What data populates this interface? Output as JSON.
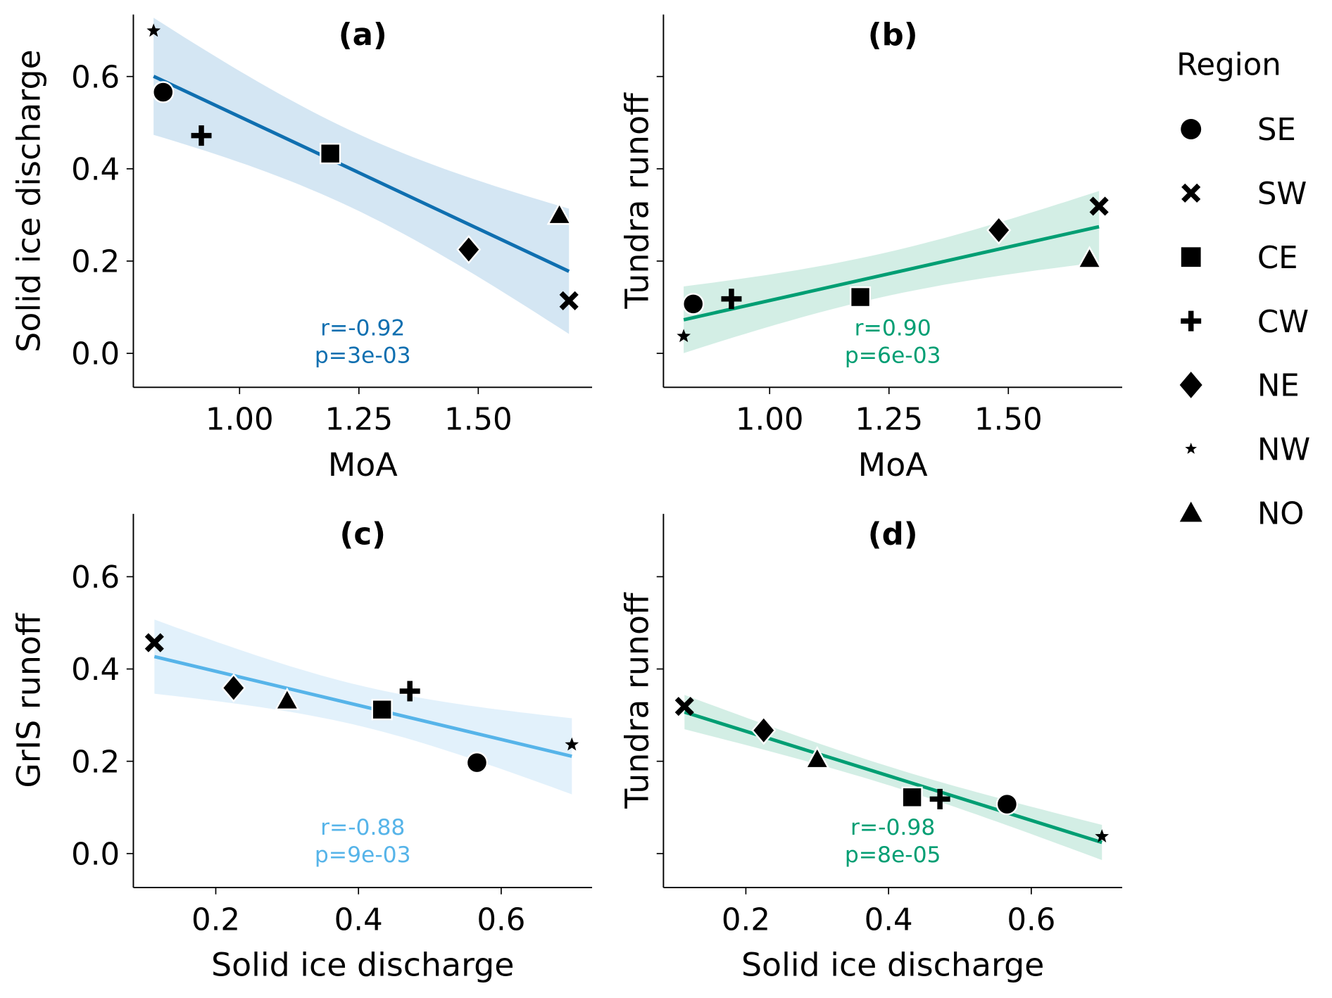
{
  "chart_data": {
    "type": "scatter",
    "regions": [
      "SE",
      "SW",
      "CE",
      "CW",
      "NE",
      "NW",
      "NO"
    ],
    "markers": {
      "SE": "circle",
      "SW": "x",
      "CE": "square",
      "CW": "plus",
      "NE": "diamond",
      "NW": "star",
      "NO": "triangle"
    },
    "points": {
      "SE": {
        "MoA": 0.84,
        "solid": 0.566,
        "tundra": 0.107,
        "gris": 0.197
      },
      "SW": {
        "MoA": 1.69,
        "solid": 0.114,
        "tundra": 0.319,
        "gris": 0.457
      },
      "CE": {
        "MoA": 1.19,
        "solid": 0.433,
        "tundra": 0.122,
        "gris": 0.312
      },
      "CW": {
        "MoA": 0.92,
        "solid": 0.472,
        "tundra": 0.118,
        "gris": 0.352
      },
      "NE": {
        "MoA": 1.48,
        "solid": 0.225,
        "tundra": 0.267,
        "gris": 0.359
      },
      "NW": {
        "MoA": 0.82,
        "solid": 0.699,
        "tundra": 0.037,
        "gris": 0.236
      },
      "NO": {
        "MoA": 1.67,
        "solid": 0.3,
        "tundra": 0.205,
        "gris": 0.332
      }
    },
    "panels": [
      {
        "title": "(a)",
        "x_var": "MoA",
        "y_var": "solid",
        "xlabel": "MoA",
        "ylabel": "Solid ice discharge",
        "xticks": [
          "1.00",
          "1.25",
          "1.50"
        ],
        "yticks": [
          "0.0",
          "0.2",
          "0.4",
          "0.6"
        ],
        "show_yticklabels": true,
        "r": "r=-0.92",
        "p": "p=3e-03",
        "color": "#0f6fb0",
        "band_color": "#c6ddef"
      },
      {
        "title": "(b)",
        "x_var": "MoA",
        "y_var": "tundra",
        "xlabel": "MoA",
        "ylabel": "Tundra runoff",
        "xticks": [
          "1.00",
          "1.25",
          "1.50"
        ],
        "yticks": [
          "0.0",
          "0.2",
          "0.4",
          "0.6"
        ],
        "show_yticklabels": false,
        "r": "r=0.90",
        "p": "p=6e-03",
        "color": "#009e73",
        "band_color": "#c4e8dc"
      },
      {
        "title": "(c)",
        "x_var": "solid",
        "y_var": "gris",
        "xlabel": "Solid ice discharge",
        "ylabel": "GrIS runoff",
        "xticks": [
          "0.2",
          "0.4",
          "0.6"
        ],
        "yticks": [
          "0.0",
          "0.2",
          "0.4",
          "0.6"
        ],
        "show_yticklabels": true,
        "r": "r=-0.88",
        "p": "p=9e-03",
        "color": "#56b4e9",
        "band_color": "#d8ecf9"
      },
      {
        "title": "(d)",
        "x_var": "solid",
        "y_var": "tundra",
        "xlabel": "Solid ice discharge",
        "ylabel": "Tundra runoff",
        "xticks": [
          "0.2",
          "0.4",
          "0.6"
        ],
        "yticks": [
          "0.0",
          "0.2",
          "0.4",
          "0.6"
        ],
        "show_yticklabels": false,
        "r": "r=-0.98",
        "p": "p=8e-05",
        "color": "#009e73",
        "band_color": "#c4e8dc"
      }
    ],
    "legend": {
      "title": "Region",
      "placement": "right"
    }
  }
}
